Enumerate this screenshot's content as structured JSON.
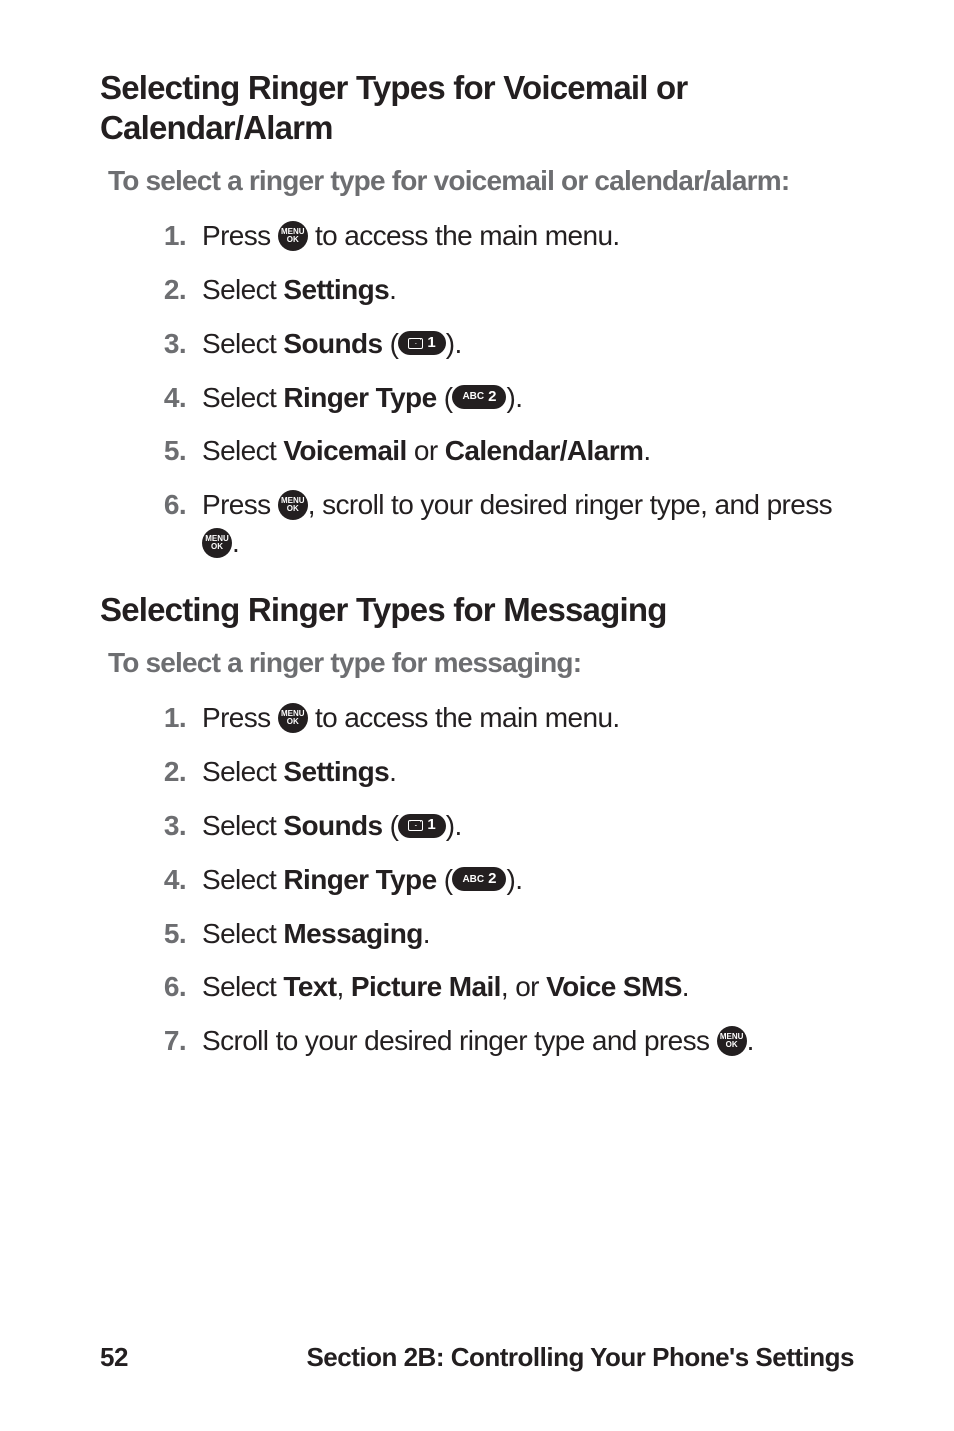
{
  "colors": {
    "text": "#231f20",
    "muted": "#6d6e71",
    "icon_bg": "#231f20",
    "icon_fg": "#ffffff",
    "page_bg": "#ffffff"
  },
  "typography": {
    "section_title_pt": 33,
    "subheading_pt": 28,
    "body_pt": 28,
    "footer_pt": 26,
    "weight_bold": 700,
    "weight_regular": 400
  },
  "icons": {
    "menu_ok": {
      "line1": "MENU",
      "line2": "OK"
    },
    "key1": {
      "label_sub": "✉",
      "label_main": "1"
    },
    "key2": {
      "label_sub": "ABC",
      "label_main": "2"
    }
  },
  "sectionA": {
    "title": "Selecting Ringer Types for Voicemail or Calendar/Alarm",
    "subheading": "To select a ringer type for voicemail or calendar/alarm:",
    "steps": {
      "s1a": "Press ",
      "s1b": " to access the main menu.",
      "s2a": "Select ",
      "s2b": "Settings",
      "s2c": ".",
      "s3a": "Select ",
      "s3b": "Sounds",
      "s3c": " (",
      "s3d": ").",
      "s4a": "Select ",
      "s4b": "Ringer Type",
      "s4c": " (",
      "s4d": ").",
      "s5a": "Select ",
      "s5b": "Voicemail",
      "s5c": " or ",
      "s5d": "Calendar/Alarm",
      "s5e": ".",
      "s6a": "Press ",
      "s6b": ", scroll to your desired ringer type, and press ",
      "s6c": "."
    }
  },
  "sectionB": {
    "title": "Selecting Ringer Types for Messaging",
    "subheading": "To select a ringer type for messaging:",
    "steps": {
      "s1a": "Press ",
      "s1b": " to access the main menu.",
      "s2a": "Select ",
      "s2b": "Settings",
      "s2c": ".",
      "s3a": "Select ",
      "s3b": "Sounds",
      "s3c": " (",
      "s3d": ").",
      "s4a": "Select ",
      "s4b": "Ringer Type",
      "s4c": " (",
      "s4d": ").",
      "s5a": "Select ",
      "s5b": "Messaging",
      "s5c": ".",
      "s6a": "Select ",
      "s6b": "Text",
      "s6c": ", ",
      "s6d": "Picture Mail",
      "s6e": ", or ",
      "s6f": "Voice SMS",
      "s6g": ".",
      "s7a": "Scroll to your desired ringer type and press ",
      "s7b": "."
    }
  },
  "footer": {
    "page": "52",
    "section": "Section 2B: Controlling Your Phone's Settings"
  }
}
